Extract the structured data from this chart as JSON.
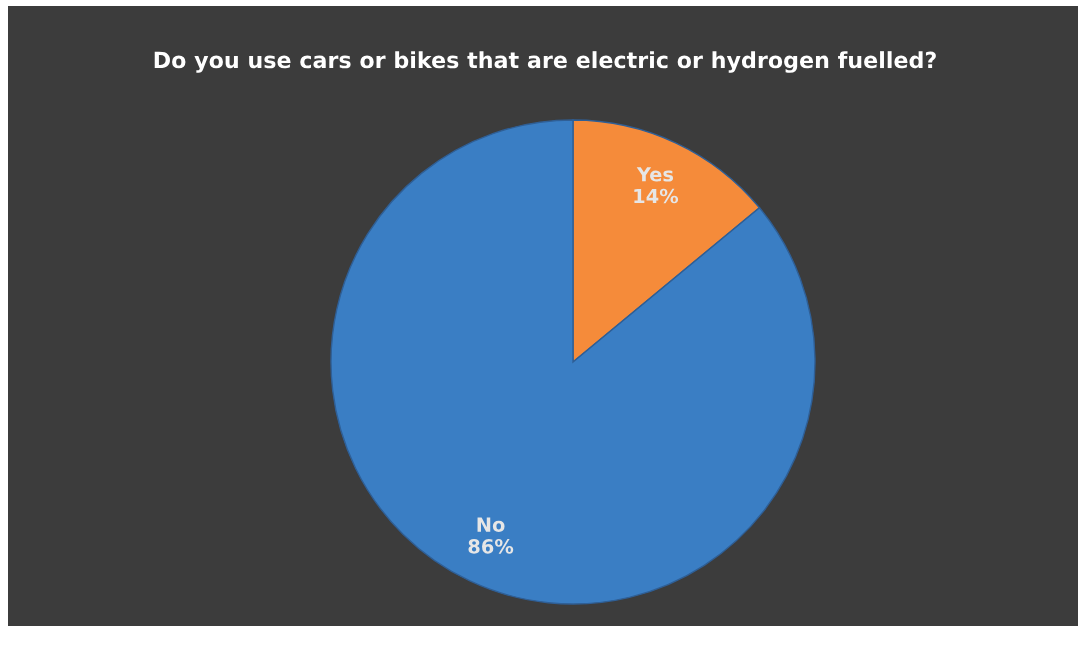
{
  "chart_data": {
    "type": "pie",
    "title": "Do you use cars or bikes that are electric or hydrogen fuelled?",
    "categories": [
      "Yes",
      "No"
    ],
    "values": [
      14,
      86
    ],
    "colors": [
      "#f58b3a",
      "#3a7ec4"
    ],
    "value_labels": [
      "14%",
      "86%"
    ]
  }
}
